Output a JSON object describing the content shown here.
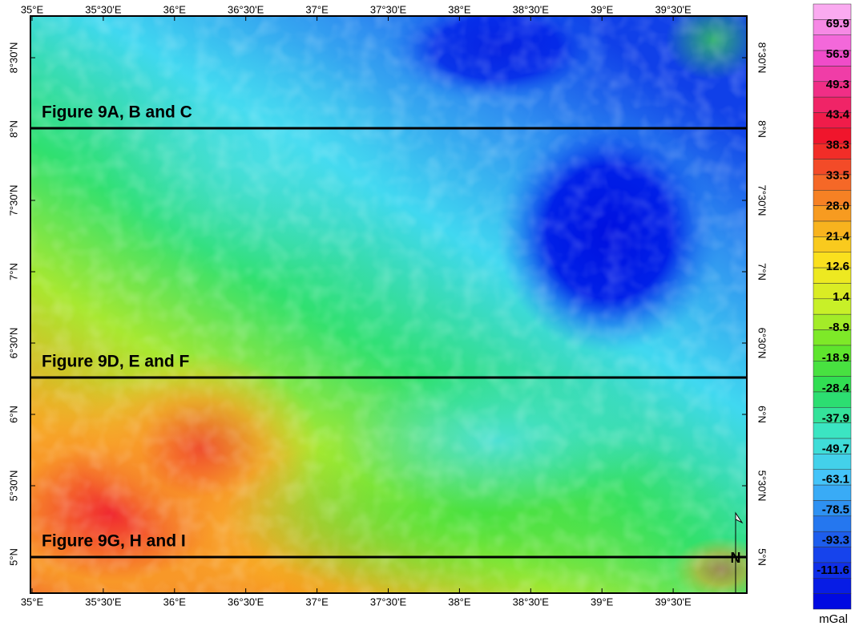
{
  "map": {
    "top_axis": [
      "35°E",
      "35°30'E",
      "36°E",
      "36°30'E",
      "37°E",
      "37°30'E",
      "38°E",
      "38°30'E",
      "39°E",
      "39°30'E"
    ],
    "bottom_axis": [
      "35°E",
      "35°30'E",
      "36°E",
      "36°30'E",
      "37°E",
      "37°30'E",
      "38°E",
      "38°30'E",
      "39°E",
      "39°30'E"
    ],
    "left_axis": [
      "8°30'N",
      "8°N",
      "7°30'N",
      "7°N",
      "6°30'N",
      "6°N",
      "5°30'N",
      "5°N"
    ],
    "right_axis": [
      "8°30'N",
      "8°N",
      "7°30'N",
      "7°N",
      "6°30'N",
      "6°N",
      "5°30'N",
      "5°N"
    ],
    "profiles": [
      "Figure 9A, B and C",
      "Figure 9D, E and F",
      "Figure 9G, H and I"
    ],
    "colorbar": {
      "labels": [
        "69.9",
        "56.9",
        "49.3",
        "43.4",
        "38.3",
        "33.5",
        "28.0",
        "21.4",
        "12.6",
        "1.4",
        "-8.9",
        "-18.9",
        "-28.4",
        "-37.9",
        "-49.7",
        "-63.1",
        "-78.5",
        "-93.3",
        "-111.6"
      ],
      "unit": "mGal"
    }
  }
}
